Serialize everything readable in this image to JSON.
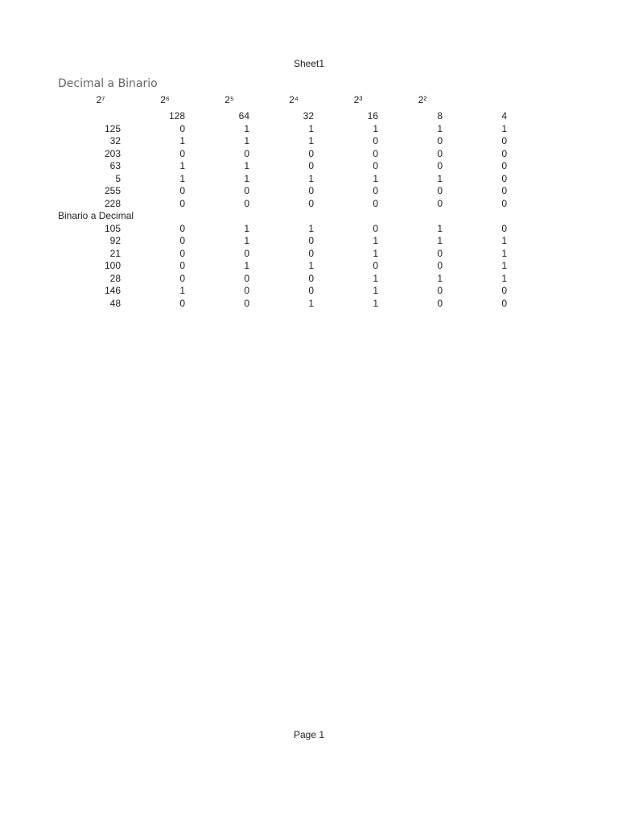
{
  "header": {
    "sheet_name": "Sheet1"
  },
  "footer": {
    "page_label": "Page 1"
  },
  "title": "Decimal a Binario",
  "exponents": [
    "2⁷",
    "2⁶",
    "2⁵",
    "2⁴",
    "2³",
    "2²"
  ],
  "place_values": [
    "128",
    "64",
    "32",
    "16",
    "8",
    "4"
  ],
  "decimal_to_binary": [
    [
      "125",
      "0",
      "1",
      "1",
      "1",
      "1",
      "1"
    ],
    [
      "32",
      "1",
      "1",
      "1",
      "0",
      "0",
      "0"
    ],
    [
      "203",
      "0",
      "0",
      "0",
      "0",
      "0",
      "0"
    ],
    [
      "63",
      "1",
      "1",
      "0",
      "0",
      "0",
      "0"
    ],
    [
      "5",
      "1",
      "1",
      "1",
      "1",
      "1",
      "0"
    ],
    [
      "255",
      "0",
      "0",
      "0",
      "0",
      "0",
      "0"
    ],
    [
      "228",
      "0",
      "0",
      "0",
      "0",
      "0",
      "0"
    ]
  ],
  "section2_title": "Binario a Decimal",
  "binary_to_decimal": [
    [
      "105",
      "0",
      "1",
      "1",
      "0",
      "1",
      "0"
    ],
    [
      "92",
      "0",
      "1",
      "0",
      "1",
      "1",
      "1"
    ],
    [
      "21",
      "0",
      "0",
      "0",
      "1",
      "0",
      "1"
    ],
    [
      "100",
      "0",
      "1",
      "1",
      "0",
      "0",
      "1"
    ],
    [
      "28",
      "0",
      "0",
      "0",
      "1",
      "1",
      "1"
    ],
    [
      "146",
      "1",
      "0",
      "0",
      "1",
      "0",
      "0"
    ],
    [
      "48",
      "0",
      "0",
      "1",
      "1",
      "0",
      "0"
    ]
  ]
}
